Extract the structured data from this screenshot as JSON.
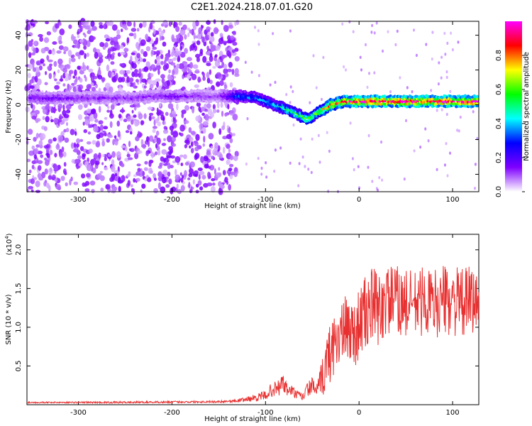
{
  "figure_title": "C2E1.2024.218.07.01.G20",
  "chart_data": [
    {
      "type": "heatmap",
      "title": "C2E1.2024.218.07.01.G20",
      "xlabel": "Height of straight line (km)",
      "ylabel": "Frequency (Hz)",
      "xlim": [
        -355,
        128
      ],
      "ylim": [
        -50,
        48
      ],
      "xticks": [
        -300,
        -200,
        -100,
        0,
        100
      ],
      "xtick_labels": [
        "-300",
        "-200",
        "-100",
        "0",
        "100"
      ],
      "yticks": [
        -40,
        -20,
        0,
        20,
        40
      ],
      "ytick_labels": [
        "-40",
        "-20",
        "0",
        "20",
        "40"
      ],
      "colorbar": {
        "label": "Normalized spectral amplitude",
        "range": [
          0.0,
          1.0
        ],
        "ticks": [
          0.0,
          0.2,
          0.4,
          0.6,
          0.8
        ],
        "tick_labels": [
          "0.0",
          "0.2",
          "0.4",
          "0.6",
          "0.8"
        ],
        "colors": [
          "#ffffff",
          "#7f00ff",
          "#0000ff",
          "#00ffff",
          "#00ff00",
          "#ffff00",
          "#ff0000",
          "#ff00ff"
        ]
      },
      "ridge": {
        "x": [
          -350,
          -330,
          -300,
          -270,
          -240,
          -220,
          -200,
          -180,
          -150,
          -130,
          -110,
          -90,
          -75,
          -60,
          -55,
          -45,
          -30,
          -15,
          0,
          30,
          60,
          90,
          128
        ],
        "freq": [
          4,
          4,
          4,
          4,
          4,
          5,
          5,
          5,
          5,
          5,
          4,
          0,
          -3,
          -7,
          -8,
          -5,
          0,
          2,
          2,
          2,
          2,
          2,
          2
        ],
        "amplitude": [
          0.15,
          0.15,
          0.12,
          0.12,
          0.12,
          0.12,
          0.15,
          0.12,
          0.1,
          0.3,
          0.35,
          0.4,
          0.5,
          0.55,
          0.55,
          0.6,
          0.75,
          0.85,
          0.9,
          0.9,
          0.9,
          0.9,
          0.9
        ]
      },
      "noise_region": {
        "x_from": -355,
        "x_to": -130,
        "freq_from": -50,
        "freq_to": 48,
        "level": 0.12
      }
    },
    {
      "type": "line",
      "xlabel": "Height of straight line (km)",
      "ylabel": "SNR (10 * v/v)",
      "y_multiplier_label": "(x10",
      "y_multiplier_exp": "4",
      "y_multiplier_close": ")",
      "xlim": [
        -355,
        128
      ],
      "ylim": [
        0.0,
        2.2
      ],
      "xticks": [
        -300,
        -200,
        -100,
        0,
        100
      ],
      "xtick_labels": [
        "-300",
        "-200",
        "-100",
        "0",
        "100"
      ],
      "yticks": [
        0.5,
        1.0,
        1.5,
        2.0
      ],
      "ytick_labels": [
        "0.5",
        "1.0",
        "1.5",
        "2.0"
      ],
      "color": "#e83030",
      "series": [
        {
          "x": [
            -355,
            -300,
            -250,
            -200,
            -150,
            -130,
            -115,
            -100,
            -95,
            -90,
            -85,
            -82,
            -78,
            -72,
            -66,
            -60,
            -55,
            -50,
            -45,
            -40,
            -35,
            -30,
            -25,
            -20,
            -15,
            -10,
            -5,
            0,
            5,
            10,
            15,
            20,
            30,
            40,
            50,
            60,
            70,
            80,
            90,
            100,
            110,
            120,
            128
          ],
          "y": [
            0.03,
            0.03,
            0.03,
            0.035,
            0.04,
            0.05,
            0.08,
            0.12,
            0.18,
            0.2,
            0.22,
            0.3,
            0.2,
            0.18,
            0.12,
            0.1,
            0.2,
            0.25,
            0.18,
            0.3,
            0.55,
            0.7,
            0.85,
            0.9,
            0.95,
            1.0,
            0.9,
            1.05,
            1.15,
            1.2,
            1.3,
            1.2,
            1.35,
            1.35,
            1.3,
            1.3,
            1.35,
            1.3,
            1.35,
            1.35,
            1.3,
            1.35,
            1.3
          ],
          "spread": [
            0.01,
            0.01,
            0.012,
            0.012,
            0.015,
            0.02,
            0.04,
            0.06,
            0.08,
            0.1,
            0.12,
            0.12,
            0.1,
            0.08,
            0.06,
            0.06,
            0.1,
            0.1,
            0.1,
            0.25,
            0.35,
            0.4,
            0.4,
            0.4,
            0.45,
            0.45,
            0.45,
            0.45,
            0.5,
            0.5,
            0.5,
            0.5,
            0.45,
            0.45,
            0.45,
            0.45,
            0.45,
            0.45,
            0.45,
            0.45,
            0.45,
            0.45,
            0.45
          ]
        }
      ]
    }
  ]
}
